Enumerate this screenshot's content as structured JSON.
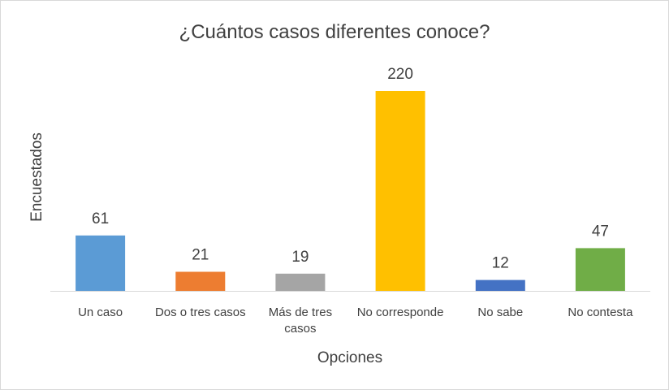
{
  "chart_data": {
    "type": "bar",
    "title": "¿Cuántos casos diferentes conoce?",
    "xlabel": "Opciones",
    "ylabel": "Encuestados",
    "categories": [
      [
        "Un caso"
      ],
      [
        "Dos o tres casos"
      ],
      [
        "Más de tres",
        "casos"
      ],
      [
        "No corresponde"
      ],
      [
        "No sabe"
      ],
      [
        "No contesta"
      ]
    ],
    "values": [
      61,
      21,
      19,
      220,
      12,
      47
    ],
    "colors": [
      "#5b9bd5",
      "#ed7d31",
      "#a5a5a5",
      "#ffc000",
      "#4472c4",
      "#70ad47"
    ],
    "ylim": [
      0,
      220
    ],
    "grid": false,
    "legend": "none",
    "data_labels": true
  }
}
